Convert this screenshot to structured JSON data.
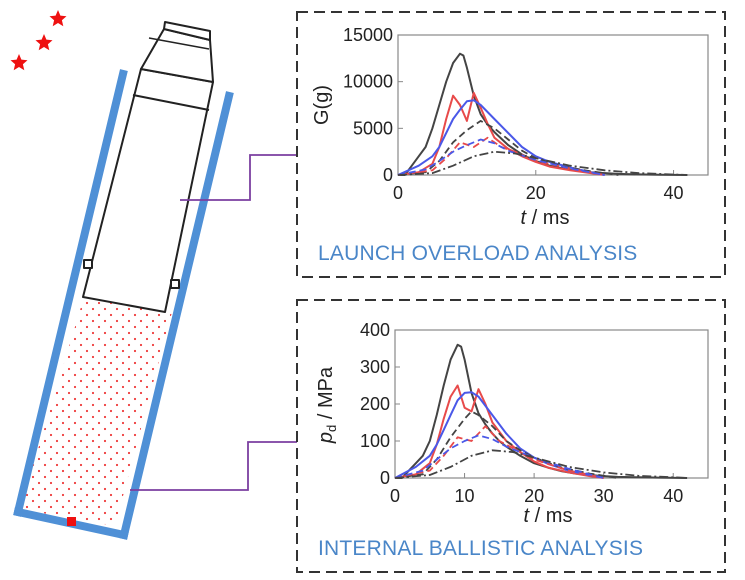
{
  "colors": {
    "tube": "#4f90d6",
    "powder_dots": "#ee3b3b",
    "stars": "#ee1111",
    "leader": "#7b3fa0",
    "caption": "#4a86c8",
    "frame": "#333333",
    "series_black": "#444444",
    "series_red": "#e84a4a",
    "series_blue": "#4a58e8"
  },
  "icons": [
    "star-icon",
    "star-icon",
    "star-icon"
  ],
  "captions": {
    "top": "LAUNCH OVERLOAD ANALYSIS",
    "bottom": "INTERNAL BALLISTIC ANALYSIS"
  },
  "chart_data": [
    {
      "type": "line",
      "xlabel_italic": "t",
      "xlabel_rest": " / ms",
      "ylabel": "G(g)",
      "xlim": [
        0,
        45
      ],
      "ylim": [
        0,
        15000
      ],
      "x_ticks": [
        "0",
        "20",
        "40"
      ],
      "y_ticks": [
        "0",
        "5000",
        "10000",
        "15000"
      ],
      "series": [
        {
          "style": "solid",
          "color": "black",
          "x": [
            0,
            1,
            2,
            3,
            4,
            5,
            6,
            7,
            8,
            9,
            9.5,
            10,
            11,
            12,
            13,
            14,
            15,
            16,
            18,
            20,
            22,
            24,
            26,
            28,
            30,
            32,
            35,
            38,
            42
          ],
          "y": [
            0,
            0,
            1000,
            2000,
            3000,
            5000,
            7500,
            10000,
            12000,
            13000,
            12800,
            11500,
            8500,
            6500,
            5400,
            4600,
            3900,
            3200,
            2200,
            1500,
            1000,
            700,
            450,
            300,
            200,
            120,
            60,
            30,
            0
          ]
        },
        {
          "style": "solid",
          "color": "red",
          "x": [
            0,
            3,
            5,
            6,
            7,
            8,
            9,
            10,
            11,
            12,
            13,
            14,
            16,
            18,
            20,
            22,
            25,
            28,
            30
          ],
          "y": [
            0,
            300,
            1200,
            3000,
            6000,
            8500,
            7500,
            5800,
            8800,
            7200,
            5500,
            4000,
            2800,
            2000,
            1400,
            900,
            500,
            200,
            0
          ]
        },
        {
          "style": "solid",
          "color": "blue",
          "x": [
            0,
            3,
            5,
            6,
            7,
            8,
            9,
            10,
            11,
            12,
            14,
            16,
            18,
            20,
            22,
            25,
            28,
            30
          ],
          "y": [
            0,
            1000,
            2000,
            3000,
            4500,
            6000,
            7000,
            7900,
            8000,
            7500,
            6000,
            4500,
            3000,
            2000,
            1400,
            800,
            300,
            0
          ]
        },
        {
          "style": "dashed",
          "color": "black",
          "x": [
            0,
            4,
            6,
            8,
            10,
            12,
            14,
            16,
            18,
            20,
            24,
            28,
            32
          ],
          "y": [
            0,
            300,
            1500,
            3500,
            4800,
            5800,
            5000,
            3800,
            2600,
            1800,
            900,
            400,
            0
          ]
        },
        {
          "style": "dashed",
          "color": "red",
          "x": [
            0,
            5,
            7,
            9,
            11,
            13,
            15,
            17,
            20,
            25,
            30
          ],
          "y": [
            0,
            500,
            1800,
            3500,
            3000,
            4000,
            3000,
            2500,
            1500,
            700,
            0
          ]
        },
        {
          "style": "dashed",
          "color": "blue",
          "x": [
            0,
            4,
            6,
            8,
            10,
            12,
            14,
            16,
            20,
            25,
            30
          ],
          "y": [
            0,
            600,
            1500,
            2500,
            3200,
            3800,
            3400,
            2600,
            1600,
            700,
            0
          ]
        },
        {
          "style": "dashdot",
          "color": "black",
          "x": [
            0,
            5,
            8,
            11,
            14,
            17,
            20,
            25,
            30,
            35,
            40,
            42
          ],
          "y": [
            0,
            200,
            1000,
            2000,
            2500,
            2300,
            1800,
            1000,
            500,
            200,
            50,
            0
          ]
        }
      ]
    },
    {
      "type": "line",
      "ylabel_italic": "p",
      "ylabel_sub": "d",
      "ylabel_rest": " / MPa",
      "xlabel_italic": "t",
      "xlabel_rest": " / ms",
      "xlim": [
        0,
        45
      ],
      "ylim": [
        0,
        400
      ],
      "x_ticks": [
        "0",
        "10",
        "20",
        "30",
        "40"
      ],
      "y_ticks": [
        "0",
        "100",
        "200",
        "300",
        "400"
      ],
      "series": [
        {
          "style": "solid",
          "color": "black",
          "x": [
            0,
            1,
            2,
            3,
            4,
            5,
            6,
            7,
            8,
            9,
            9.5,
            10,
            11,
            12,
            13,
            14,
            15,
            16,
            18,
            20,
            22,
            24,
            26,
            28,
            30,
            32,
            35,
            38,
            42
          ],
          "y": [
            0,
            0,
            20,
            40,
            60,
            100,
            170,
            250,
            320,
            360,
            355,
            320,
            230,
            175,
            145,
            120,
            100,
            85,
            60,
            40,
            28,
            18,
            12,
            8,
            5,
            3,
            2,
            1,
            0
          ]
        },
        {
          "style": "solid",
          "color": "red",
          "x": [
            0,
            3,
            5,
            6,
            7,
            8,
            9,
            10,
            11,
            12,
            13,
            14,
            16,
            18,
            20,
            22,
            25,
            28,
            30
          ],
          "y": [
            0,
            10,
            40,
            90,
            160,
            220,
            250,
            190,
            180,
            240,
            200,
            150,
            100,
            70,
            45,
            28,
            15,
            5,
            0
          ]
        },
        {
          "style": "solid",
          "color": "blue",
          "x": [
            0,
            3,
            5,
            6,
            7,
            8,
            9,
            10,
            11,
            12,
            14,
            16,
            18,
            20,
            22,
            25,
            28,
            30
          ],
          "y": [
            0,
            30,
            60,
            90,
            130,
            170,
            210,
            230,
            232,
            220,
            170,
            120,
            80,
            55,
            38,
            20,
            8,
            0
          ]
        },
        {
          "style": "dashed",
          "color": "black",
          "x": [
            0,
            4,
            6,
            8,
            10,
            11,
            12,
            14,
            16,
            18,
            20,
            24,
            28,
            32
          ],
          "y": [
            0,
            10,
            50,
            110,
            160,
            180,
            170,
            140,
            100,
            75,
            55,
            28,
            12,
            0
          ]
        },
        {
          "style": "dashed",
          "color": "red",
          "x": [
            0,
            5,
            7,
            9,
            11,
            13,
            15,
            17,
            20,
            25,
            30
          ],
          "y": [
            0,
            20,
            60,
            110,
            100,
            140,
            100,
            80,
            50,
            20,
            0
          ]
        },
        {
          "style": "dashed",
          "color": "blue",
          "x": [
            0,
            4,
            6,
            8,
            10,
            12,
            14,
            16,
            20,
            25,
            30
          ],
          "y": [
            0,
            20,
            50,
            80,
            100,
            115,
            105,
            85,
            55,
            25,
            0
          ]
        },
        {
          "style": "dashdot",
          "color": "black",
          "x": [
            0,
            5,
            8,
            11,
            14,
            17,
            20,
            25,
            30,
            35,
            40,
            42
          ],
          "y": [
            0,
            8,
            30,
            60,
            75,
            70,
            55,
            30,
            15,
            6,
            2,
            0
          ]
        }
      ]
    }
  ]
}
